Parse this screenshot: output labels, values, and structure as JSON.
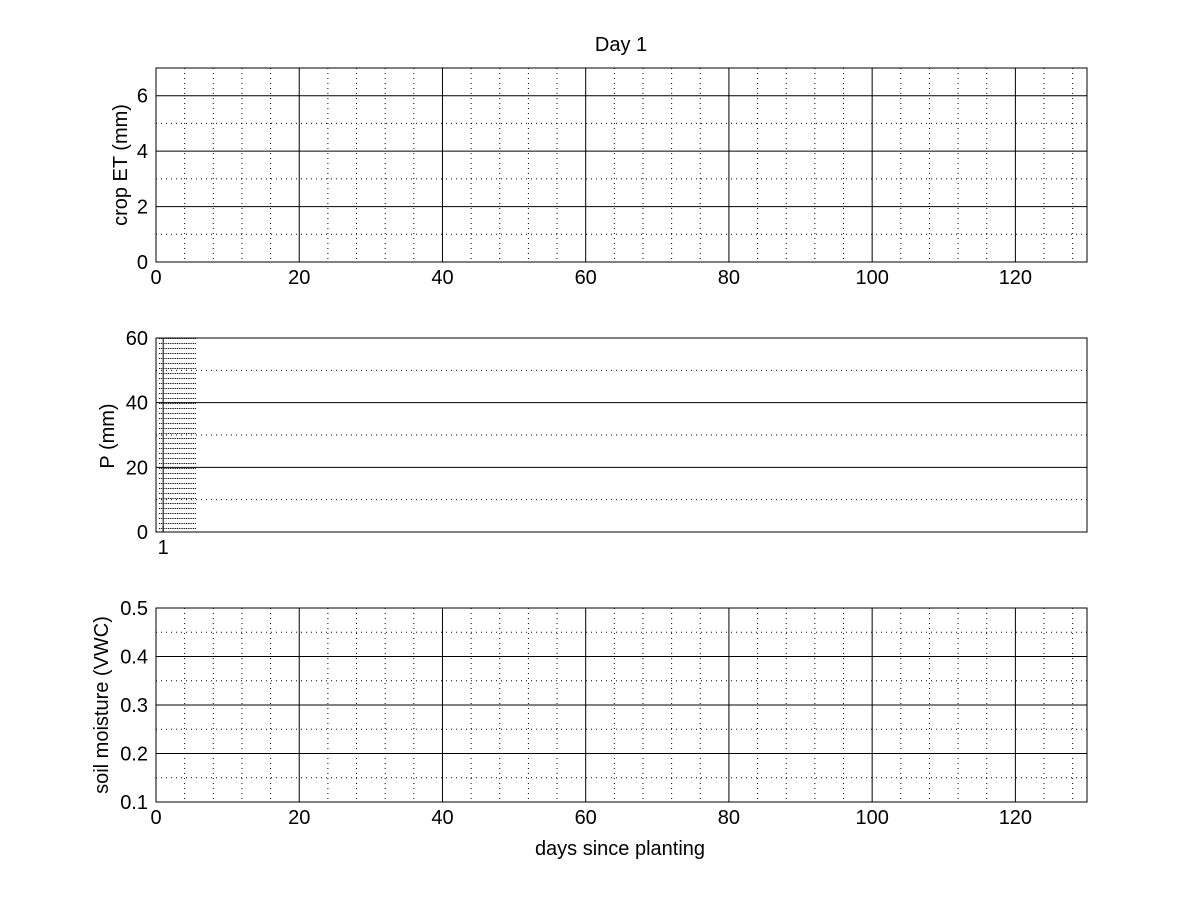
{
  "chart_data": [
    {
      "type": "line",
      "title": "Day 1",
      "xlabel": "",
      "ylabel": "crop ET (mm)",
      "xlim": [
        0,
        130
      ],
      "ylim": [
        0,
        7
      ],
      "x_ticks": [
        0,
        20,
        40,
        60,
        80,
        100,
        120
      ],
      "y_ticks": [
        0,
        2,
        4,
        6
      ],
      "grid": "major and minor",
      "series": []
    },
    {
      "type": "bar",
      "title": "",
      "xlabel": "",
      "ylabel": "P (mm)",
      "xlim": [
        0,
        130
      ],
      "ylim": [
        0,
        60
      ],
      "x_ticks": [
        1
      ],
      "y_ticks": [
        0,
        20,
        40,
        60
      ],
      "grid": "major and minor",
      "categories": [
        1
      ],
      "values": [
        0
      ]
    },
    {
      "type": "line",
      "title": "",
      "xlabel": "days since planting",
      "ylabel": "soil moisture (VWC)",
      "xlim": [
        0,
        130
      ],
      "ylim": [
        0.1,
        0.5
      ],
      "x_ticks": [
        0,
        20,
        40,
        60,
        80,
        100,
        120
      ],
      "y_ticks": [
        0.1,
        0.2,
        0.3,
        0.4,
        0.5
      ],
      "grid": "major and minor",
      "series": []
    }
  ]
}
